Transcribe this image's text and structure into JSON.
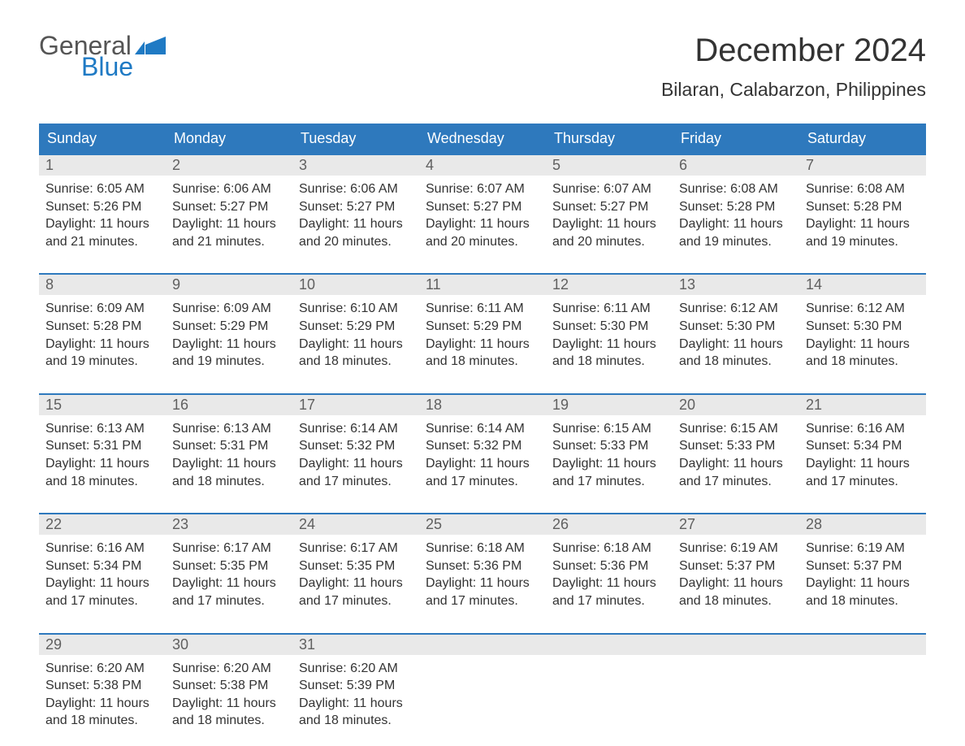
{
  "logo": {
    "part1": "General",
    "part2": "Blue",
    "flag_color": "#1f7ac4"
  },
  "title": {
    "month": "December 2024",
    "location": "Bilaran, Calabarzon, Philippines"
  },
  "colors": {
    "header_bg": "#2e79bd",
    "header_text": "#ffffff",
    "daynum_bg": "#e9e9e9",
    "daynum_text": "#606060",
    "body_text": "#333333",
    "page_bg": "#ffffff",
    "week_border": "#2e79bd"
  },
  "typography": {
    "month_fontsize": 40,
    "location_fontsize": 23,
    "dow_fontsize": 18,
    "daynum_fontsize": 18,
    "cell_fontsize": 16,
    "logo_fontsize": 32
  },
  "days_of_week": [
    "Sunday",
    "Monday",
    "Tuesday",
    "Wednesday",
    "Thursday",
    "Friday",
    "Saturday"
  ],
  "weeks": [
    [
      {
        "n": "1",
        "sunrise": "Sunrise: 6:05 AM",
        "sunset": "Sunset: 5:26 PM",
        "daylight1": "Daylight: 11 hours",
        "daylight2": "and 21 minutes."
      },
      {
        "n": "2",
        "sunrise": "Sunrise: 6:06 AM",
        "sunset": "Sunset: 5:27 PM",
        "daylight1": "Daylight: 11 hours",
        "daylight2": "and 21 minutes."
      },
      {
        "n": "3",
        "sunrise": "Sunrise: 6:06 AM",
        "sunset": "Sunset: 5:27 PM",
        "daylight1": "Daylight: 11 hours",
        "daylight2": "and 20 minutes."
      },
      {
        "n": "4",
        "sunrise": "Sunrise: 6:07 AM",
        "sunset": "Sunset: 5:27 PM",
        "daylight1": "Daylight: 11 hours",
        "daylight2": "and 20 minutes."
      },
      {
        "n": "5",
        "sunrise": "Sunrise: 6:07 AM",
        "sunset": "Sunset: 5:27 PM",
        "daylight1": "Daylight: 11 hours",
        "daylight2": "and 20 minutes."
      },
      {
        "n": "6",
        "sunrise": "Sunrise: 6:08 AM",
        "sunset": "Sunset: 5:28 PM",
        "daylight1": "Daylight: 11 hours",
        "daylight2": "and 19 minutes."
      },
      {
        "n": "7",
        "sunrise": "Sunrise: 6:08 AM",
        "sunset": "Sunset: 5:28 PM",
        "daylight1": "Daylight: 11 hours",
        "daylight2": "and 19 minutes."
      }
    ],
    [
      {
        "n": "8",
        "sunrise": "Sunrise: 6:09 AM",
        "sunset": "Sunset: 5:28 PM",
        "daylight1": "Daylight: 11 hours",
        "daylight2": "and 19 minutes."
      },
      {
        "n": "9",
        "sunrise": "Sunrise: 6:09 AM",
        "sunset": "Sunset: 5:29 PM",
        "daylight1": "Daylight: 11 hours",
        "daylight2": "and 19 minutes."
      },
      {
        "n": "10",
        "sunrise": "Sunrise: 6:10 AM",
        "sunset": "Sunset: 5:29 PM",
        "daylight1": "Daylight: 11 hours",
        "daylight2": "and 18 minutes."
      },
      {
        "n": "11",
        "sunrise": "Sunrise: 6:11 AM",
        "sunset": "Sunset: 5:29 PM",
        "daylight1": "Daylight: 11 hours",
        "daylight2": "and 18 minutes."
      },
      {
        "n": "12",
        "sunrise": "Sunrise: 6:11 AM",
        "sunset": "Sunset: 5:30 PM",
        "daylight1": "Daylight: 11 hours",
        "daylight2": "and 18 minutes."
      },
      {
        "n": "13",
        "sunrise": "Sunrise: 6:12 AM",
        "sunset": "Sunset: 5:30 PM",
        "daylight1": "Daylight: 11 hours",
        "daylight2": "and 18 minutes."
      },
      {
        "n": "14",
        "sunrise": "Sunrise: 6:12 AM",
        "sunset": "Sunset: 5:30 PM",
        "daylight1": "Daylight: 11 hours",
        "daylight2": "and 18 minutes."
      }
    ],
    [
      {
        "n": "15",
        "sunrise": "Sunrise: 6:13 AM",
        "sunset": "Sunset: 5:31 PM",
        "daylight1": "Daylight: 11 hours",
        "daylight2": "and 18 minutes."
      },
      {
        "n": "16",
        "sunrise": "Sunrise: 6:13 AM",
        "sunset": "Sunset: 5:31 PM",
        "daylight1": "Daylight: 11 hours",
        "daylight2": "and 18 minutes."
      },
      {
        "n": "17",
        "sunrise": "Sunrise: 6:14 AM",
        "sunset": "Sunset: 5:32 PM",
        "daylight1": "Daylight: 11 hours",
        "daylight2": "and 17 minutes."
      },
      {
        "n": "18",
        "sunrise": "Sunrise: 6:14 AM",
        "sunset": "Sunset: 5:32 PM",
        "daylight1": "Daylight: 11 hours",
        "daylight2": "and 17 minutes."
      },
      {
        "n": "19",
        "sunrise": "Sunrise: 6:15 AM",
        "sunset": "Sunset: 5:33 PM",
        "daylight1": "Daylight: 11 hours",
        "daylight2": "and 17 minutes."
      },
      {
        "n": "20",
        "sunrise": "Sunrise: 6:15 AM",
        "sunset": "Sunset: 5:33 PM",
        "daylight1": "Daylight: 11 hours",
        "daylight2": "and 17 minutes."
      },
      {
        "n": "21",
        "sunrise": "Sunrise: 6:16 AM",
        "sunset": "Sunset: 5:34 PM",
        "daylight1": "Daylight: 11 hours",
        "daylight2": "and 17 minutes."
      }
    ],
    [
      {
        "n": "22",
        "sunrise": "Sunrise: 6:16 AM",
        "sunset": "Sunset: 5:34 PM",
        "daylight1": "Daylight: 11 hours",
        "daylight2": "and 17 minutes."
      },
      {
        "n": "23",
        "sunrise": "Sunrise: 6:17 AM",
        "sunset": "Sunset: 5:35 PM",
        "daylight1": "Daylight: 11 hours",
        "daylight2": "and 17 minutes."
      },
      {
        "n": "24",
        "sunrise": "Sunrise: 6:17 AM",
        "sunset": "Sunset: 5:35 PM",
        "daylight1": "Daylight: 11 hours",
        "daylight2": "and 17 minutes."
      },
      {
        "n": "25",
        "sunrise": "Sunrise: 6:18 AM",
        "sunset": "Sunset: 5:36 PM",
        "daylight1": "Daylight: 11 hours",
        "daylight2": "and 17 minutes."
      },
      {
        "n": "26",
        "sunrise": "Sunrise: 6:18 AM",
        "sunset": "Sunset: 5:36 PM",
        "daylight1": "Daylight: 11 hours",
        "daylight2": "and 17 minutes."
      },
      {
        "n": "27",
        "sunrise": "Sunrise: 6:19 AM",
        "sunset": "Sunset: 5:37 PM",
        "daylight1": "Daylight: 11 hours",
        "daylight2": "and 18 minutes."
      },
      {
        "n": "28",
        "sunrise": "Sunrise: 6:19 AM",
        "sunset": "Sunset: 5:37 PM",
        "daylight1": "Daylight: 11 hours",
        "daylight2": "and 18 minutes."
      }
    ],
    [
      {
        "n": "29",
        "sunrise": "Sunrise: 6:20 AM",
        "sunset": "Sunset: 5:38 PM",
        "daylight1": "Daylight: 11 hours",
        "daylight2": "and 18 minutes."
      },
      {
        "n": "30",
        "sunrise": "Sunrise: 6:20 AM",
        "sunset": "Sunset: 5:38 PM",
        "daylight1": "Daylight: 11 hours",
        "daylight2": "and 18 minutes."
      },
      {
        "n": "31",
        "sunrise": "Sunrise: 6:20 AM",
        "sunset": "Sunset: 5:39 PM",
        "daylight1": "Daylight: 11 hours",
        "daylight2": "and 18 minutes."
      },
      null,
      null,
      null,
      null
    ]
  ]
}
